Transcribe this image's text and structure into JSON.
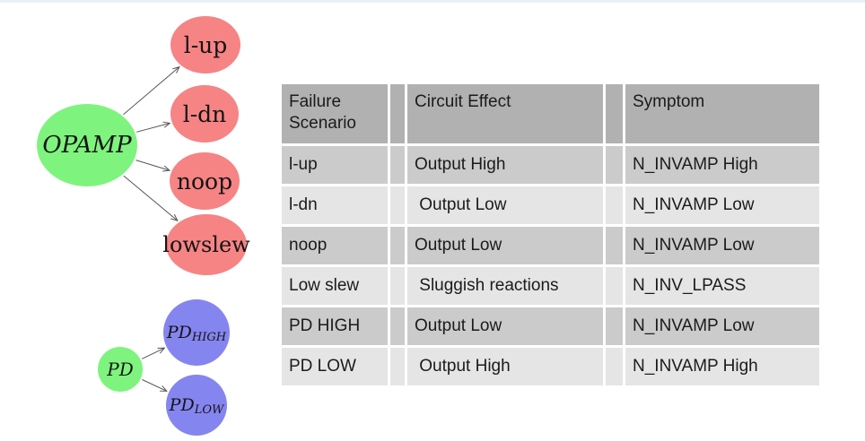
{
  "page": {
    "top_strip_color": "#e9f1f8",
    "background_color": "#ffffff"
  },
  "diagram": {
    "text_color": "#141414",
    "arrow_color": "#555555",
    "node_colors": {
      "green": "#7ef47e",
      "red": "#f68484",
      "blue": "#8585f0"
    },
    "nodes": [
      {
        "id": "opamp",
        "label": "OPAMP",
        "sub": "",
        "color": "green",
        "italic": true
      },
      {
        "id": "l-up",
        "label": "l-up",
        "sub": "",
        "color": "red",
        "italic": false
      },
      {
        "id": "l-dn",
        "label": "l-dn",
        "sub": "",
        "color": "red",
        "italic": false
      },
      {
        "id": "noop",
        "label": "noop",
        "sub": "",
        "color": "red",
        "italic": false
      },
      {
        "id": "lowslew",
        "label": "lowslew",
        "sub": "",
        "color": "red",
        "italic": false
      },
      {
        "id": "pd",
        "label": "PD",
        "sub": "",
        "color": "green",
        "italic": true
      },
      {
        "id": "pd-high",
        "label": "PD",
        "sub": "HIGH",
        "color": "blue",
        "italic": true
      },
      {
        "id": "pd-low",
        "label": "PD",
        "sub": "LOW",
        "color": "blue",
        "italic": true
      }
    ],
    "edges": [
      {
        "from": "opamp",
        "to": "l-up"
      },
      {
        "from": "opamp",
        "to": "l-dn"
      },
      {
        "from": "opamp",
        "to": "noop"
      },
      {
        "from": "opamp",
        "to": "lowslew"
      },
      {
        "from": "pd",
        "to": "pd-high"
      },
      {
        "from": "pd",
        "to": "pd-low"
      }
    ]
  },
  "table": {
    "header_bg": "#b1b1b1",
    "row_bg_odd": "#cbcbcb",
    "row_bg_even": "#e5e5e5",
    "text_color": "#1b1b1b",
    "columns": [
      "Failure Scenario",
      "Circuit Effect",
      "Symptom"
    ],
    "rows": [
      {
        "scenario": "l-up",
        "effect": "Output High",
        "symptom": "N_INVAMP High"
      },
      {
        "scenario": "l-dn",
        "effect": " Output Low",
        "symptom": "N_INVAMP Low"
      },
      {
        "scenario": "noop",
        "effect": "Output Low",
        "symptom": "N_INVAMP Low"
      },
      {
        "scenario": "Low slew",
        "effect": " Sluggish reactions",
        "symptom": "N_INV_LPASS"
      },
      {
        "scenario": "PD HIGH",
        "effect": "Output Low",
        "symptom": "N_INVAMP Low"
      },
      {
        "scenario": "PD LOW",
        "effect": " Output High",
        "symptom": "N_INVAMP High"
      }
    ]
  }
}
